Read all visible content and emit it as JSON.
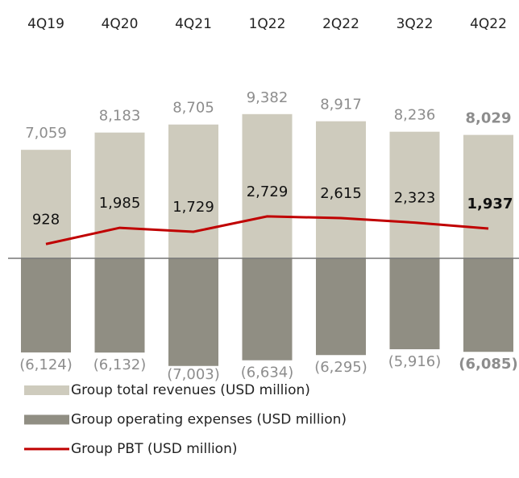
{
  "chart_data": {
    "type": "bar",
    "categories": [
      "4Q19",
      "4Q20",
      "4Q21",
      "1Q22",
      "2Q22",
      "3Q22",
      "4Q22"
    ],
    "series": [
      {
        "name": "Group total revenues (USD million)",
        "color": "#cecbbd",
        "type": "bar",
        "values": [
          7059,
          8183,
          8705,
          9382,
          8917,
          8236,
          8029
        ],
        "value_labels": [
          "7,059",
          "8,183",
          "8,705",
          "9,382",
          "8,917",
          "8,236",
          "8,029"
        ]
      },
      {
        "name": "Group operating expenses (USD million)",
        "color": "#908e83",
        "type": "bar",
        "values": [
          -6124,
          -6132,
          -7003,
          -6634,
          -6295,
          -5916,
          -6085
        ],
        "value_labels": [
          "(6,124)",
          "(6,132)",
          "(7,003)",
          "(6,634)",
          "(6,295)",
          "(5,916)",
          "(6,085)"
        ]
      },
      {
        "name": "Group PBT (USD million)",
        "color": "#c00000",
        "type": "line",
        "values": [
          928,
          1985,
          1729,
          2729,
          2615,
          2323,
          1937
        ],
        "value_labels": [
          "928",
          "1,985",
          "1,729",
          "2,729",
          "2,615",
          "2,323",
          "1,937"
        ]
      }
    ]
  }
}
